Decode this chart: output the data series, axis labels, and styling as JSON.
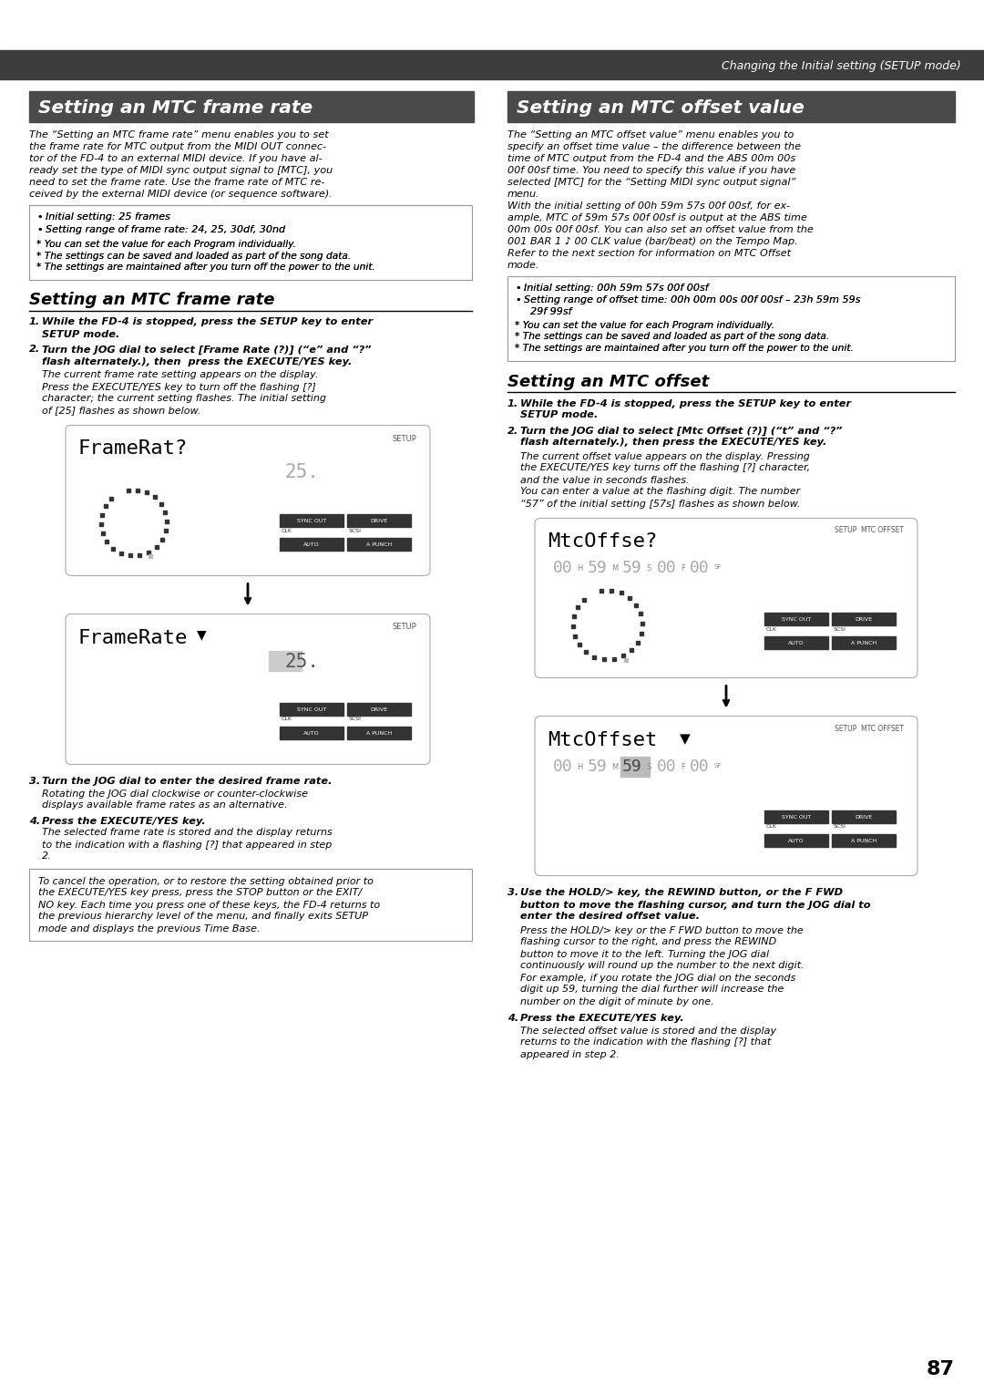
{
  "page_bg": "#ffffff",
  "header_bg": "#3d3d3d",
  "header_text": "Changing the Initial setting (SETUP mode)",
  "header_text_color": "#ffffff",
  "section1_header_bg": "#4a4a4a",
  "section1_header_text": "Setting an MTC frame rate",
  "section1_header_text_color": "#ffffff",
  "section2_header_bg": "#4a4a4a",
  "section2_header_text": "Setting an MTC offset value",
  "section2_header_text_color": "#ffffff",
  "subsection1_title": "Setting an MTC frame rate",
  "subsection2_title": "Setting an MTC offset",
  "col1_bullets": [
    "Initial setting: 25 frames",
    "Setting range of frame rate: 24, 25, 30df, 30nd"
  ],
  "col1_notes": [
    "* You can set the value for each Program individually.",
    "* The settings can be saved and loaded as part of the song data.",
    "* The settings are maintained after you turn off the power to the unit."
  ],
  "col2_bullets": [
    "Initial setting: 00h 59m 57s 00f 00sf",
    "Setting range of offset time: 00h 00m 00s 00f 00sf – 23h 59m 59s 29f 99sf"
  ],
  "col2_notes": [
    "* You can set the value for each Program individually.",
    "* The settings can be saved and loaded as part of the song data.",
    "* The settings are maintained after you turn off the power to the unit."
  ],
  "page_number": "87"
}
